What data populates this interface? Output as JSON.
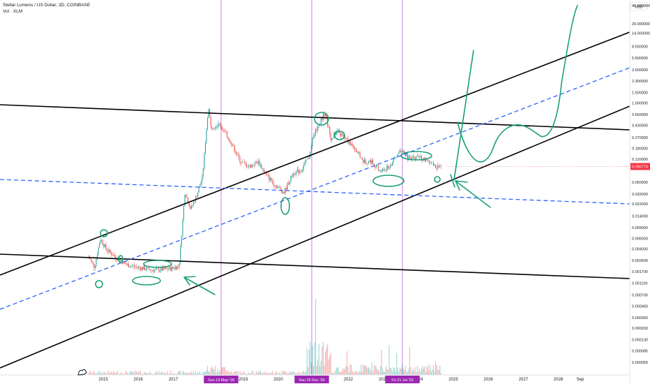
{
  "header": {
    "symbol_line": "Stellar Lumens / US Dollar, 3D, COINBASE",
    "volume_line": "Vol · XLM"
  },
  "colors": {
    "up": "#26a69a",
    "down": "#ef5350",
    "annotation": "#1a9e7a",
    "trend": "#000000",
    "midline": "#2962ff",
    "event_line": "#c158dc",
    "event_tag": "#9c27b0",
    "price_tag": "#f23645"
  },
  "chart_data": {
    "type": "candlestick",
    "currency_label": "USD",
    "y_scale": "log",
    "y_ticks": [
      "40.000000",
      "20.000000",
      "14.000000",
      "8.500000",
      "5.500000",
      "3.500000",
      "2.300000",
      "1.500000",
      "1.000000",
      "0.650000",
      "0.430000",
      "0.270000",
      "0.180000",
      "0.120000",
      "0.090774",
      "0.050000",
      "0.032000",
      "0.022000",
      "0.014000",
      "0.009000",
      "0.006000",
      "0.004000",
      "0.002600",
      "0.001700",
      "0.001100",
      "0.000700",
      "0.000460",
      "0.000300",
      "0.000200",
      "0.000130",
      "0.000085",
      "0.000055"
    ],
    "current_price": "0.090774",
    "x_ticks": [
      "2015",
      "2016",
      "2017",
      "2018",
      "2019",
      "2020",
      "2021",
      "2022",
      "2023",
      "2024",
      "2025",
      "2026",
      "2027",
      "2028",
      "Sep"
    ],
    "event_markers": [
      "Sun 13 May '18",
      "Sun 20 Dec '20",
      "Fri 21 Jul '23"
    ],
    "price_path": [
      [
        "2014-08",
        0.003
      ],
      [
        "2014-10",
        0.002
      ],
      [
        "2014-12",
        0.006
      ],
      [
        "2015-02",
        0.004
      ],
      [
        "2015-05",
        0.003
      ],
      [
        "2015-09",
        0.0022
      ],
      [
        "2016-01",
        0.002
      ],
      [
        "2016-06",
        0.0018
      ],
      [
        "2016-12",
        0.0019
      ],
      [
        "2017-03",
        0.0021
      ],
      [
        "2017-05",
        0.035
      ],
      [
        "2017-07",
        0.018
      ],
      [
        "2017-09",
        0.03
      ],
      [
        "2017-11",
        0.06
      ],
      [
        "2018-01",
        0.85
      ],
      [
        "2018-02",
        0.4
      ],
      [
        "2018-05",
        0.45
      ],
      [
        "2018-09",
        0.22
      ],
      [
        "2018-12",
        0.11
      ],
      [
        "2019-03",
        0.09
      ],
      [
        "2019-06",
        0.11
      ],
      [
        "2019-09",
        0.065
      ],
      [
        "2019-12",
        0.045
      ],
      [
        "2020-03",
        0.034
      ],
      [
        "2020-06",
        0.07
      ],
      [
        "2020-09",
        0.08
      ],
      [
        "2020-12",
        0.15
      ],
      [
        "2021-01",
        0.3
      ],
      [
        "2021-05",
        0.7
      ],
      [
        "2021-07",
        0.26
      ],
      [
        "2021-09",
        0.35
      ],
      [
        "2021-12",
        0.26
      ],
      [
        "2022-03",
        0.19
      ],
      [
        "2022-06",
        0.11
      ],
      [
        "2022-09",
        0.11
      ],
      [
        "2022-12",
        0.075
      ],
      [
        "2023-03",
        0.09
      ],
      [
        "2023-07",
        0.17
      ],
      [
        "2023-10",
        0.12
      ],
      [
        "2024-01",
        0.13
      ],
      [
        "2024-04",
        0.11
      ],
      [
        "2024-07",
        0.09
      ],
      [
        "2024-09",
        0.09
      ]
    ],
    "annotations": {
      "trend_lines": 5,
      "dashed_lines": 2,
      "arrows": 3,
      "circled_regions": 11
    }
  }
}
